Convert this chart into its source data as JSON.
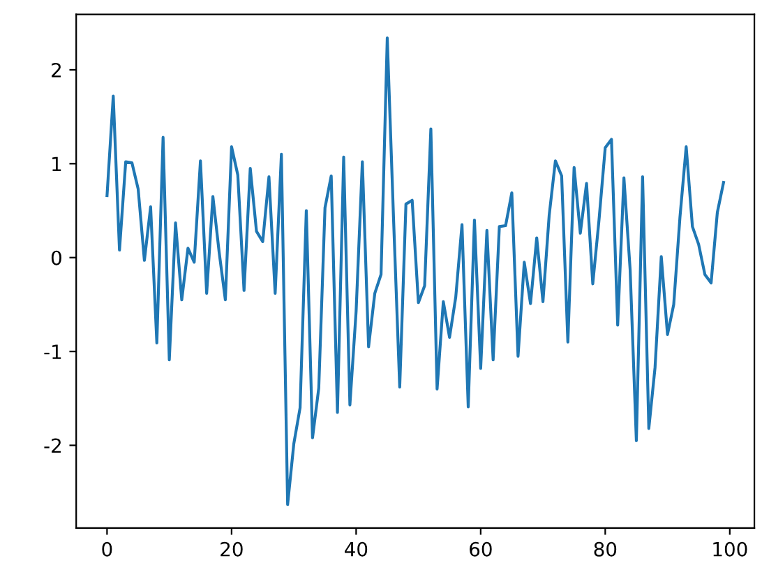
{
  "chart_data": {
    "type": "line",
    "x": [
      0,
      1,
      2,
      3,
      4,
      5,
      6,
      7,
      8,
      9,
      10,
      11,
      12,
      13,
      14,
      15,
      16,
      17,
      18,
      19,
      20,
      21,
      22,
      23,
      24,
      25,
      26,
      27,
      28,
      29,
      30,
      31,
      32,
      33,
      34,
      35,
      36,
      37,
      38,
      39,
      40,
      41,
      42,
      43,
      44,
      45,
      46,
      47,
      48,
      49,
      50,
      51,
      52,
      53,
      54,
      55,
      56,
      57,
      58,
      59,
      60,
      61,
      62,
      63,
      64,
      65,
      66,
      67,
      68,
      69,
      70,
      71,
      72,
      73,
      74,
      75,
      76,
      77,
      78,
      79,
      80,
      81,
      82,
      83,
      84,
      85,
      86,
      87,
      88,
      89,
      90,
      91,
      92,
      93,
      94,
      95,
      96,
      97,
      98,
      99
    ],
    "series": [
      {
        "color": "#1f77b4",
        "values": [
          0.66,
          1.72,
          0.08,
          1.02,
          1.01,
          0.73,
          -0.03,
          0.54,
          -0.91,
          1.28,
          -1.09,
          0.37,
          -0.45,
          0.1,
          -0.05,
          1.03,
          -0.38,
          0.65,
          0.06,
          -0.45,
          1.18,
          0.88,
          -0.35,
          0.95,
          0.28,
          0.17,
          0.86,
          -0.38,
          1.1,
          -2.63,
          -1.98,
          -1.6,
          0.5,
          -1.92,
          -1.39,
          0.53,
          0.87,
          -1.65,
          1.07,
          -1.57,
          -0.57,
          1.02,
          -0.95,
          -0.38,
          -0.18,
          2.34,
          0.43,
          -1.38,
          0.57,
          0.61,
          -0.48,
          -0.3,
          1.37,
          -1.4,
          -0.47,
          -0.85,
          -0.42,
          0.35,
          -1.59,
          0.4,
          -1.18,
          0.29,
          -1.09,
          0.33,
          0.34,
          0.69,
          -1.05,
          -0.05,
          -0.49,
          0.21,
          -0.47,
          0.45,
          1.03,
          0.87,
          -0.9,
          0.96,
          0.26,
          0.79,
          -0.28,
          0.4,
          1.17,
          1.26,
          -0.72,
          0.85,
          -0.13,
          -1.95,
          0.86,
          -1.82,
          -1.17,
          0.01,
          -0.82,
          -0.5,
          0.43,
          1.18,
          0.33,
          0.14,
          -0.18,
          -0.27,
          0.48,
          0.8
        ]
      }
    ],
    "xlim": [
      -4.95,
      103.95
    ],
    "ylim": [
      -2.88,
      2.59
    ],
    "xticks": [
      0,
      20,
      40,
      60,
      80,
      100
    ],
    "yticks": [
      -2,
      -1,
      0,
      1,
      2
    ],
    "marker": "none",
    "line_style": "solid",
    "grid": false,
    "legend": false
  }
}
